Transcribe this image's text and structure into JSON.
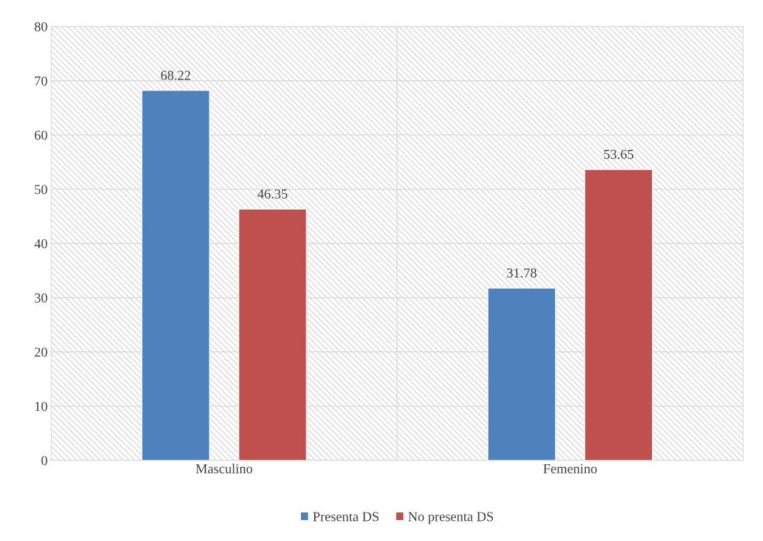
{
  "chart_data": {
    "type": "bar",
    "categories": [
      "Masculino",
      "Femenino"
    ],
    "series": [
      {
        "name": "Presenta DS",
        "color": "#4f81bd",
        "values": [
          68.22,
          31.78
        ]
      },
      {
        "name": "No presenta DS",
        "color": "#c0504d",
        "values": [
          46.35,
          53.65
        ]
      }
    ],
    "ylim": [
      0,
      80
    ],
    "yticks": [
      0,
      10,
      20,
      30,
      40,
      50,
      60,
      70,
      80
    ],
    "grid": true,
    "legend": "bottom",
    "data_labels": true
  }
}
